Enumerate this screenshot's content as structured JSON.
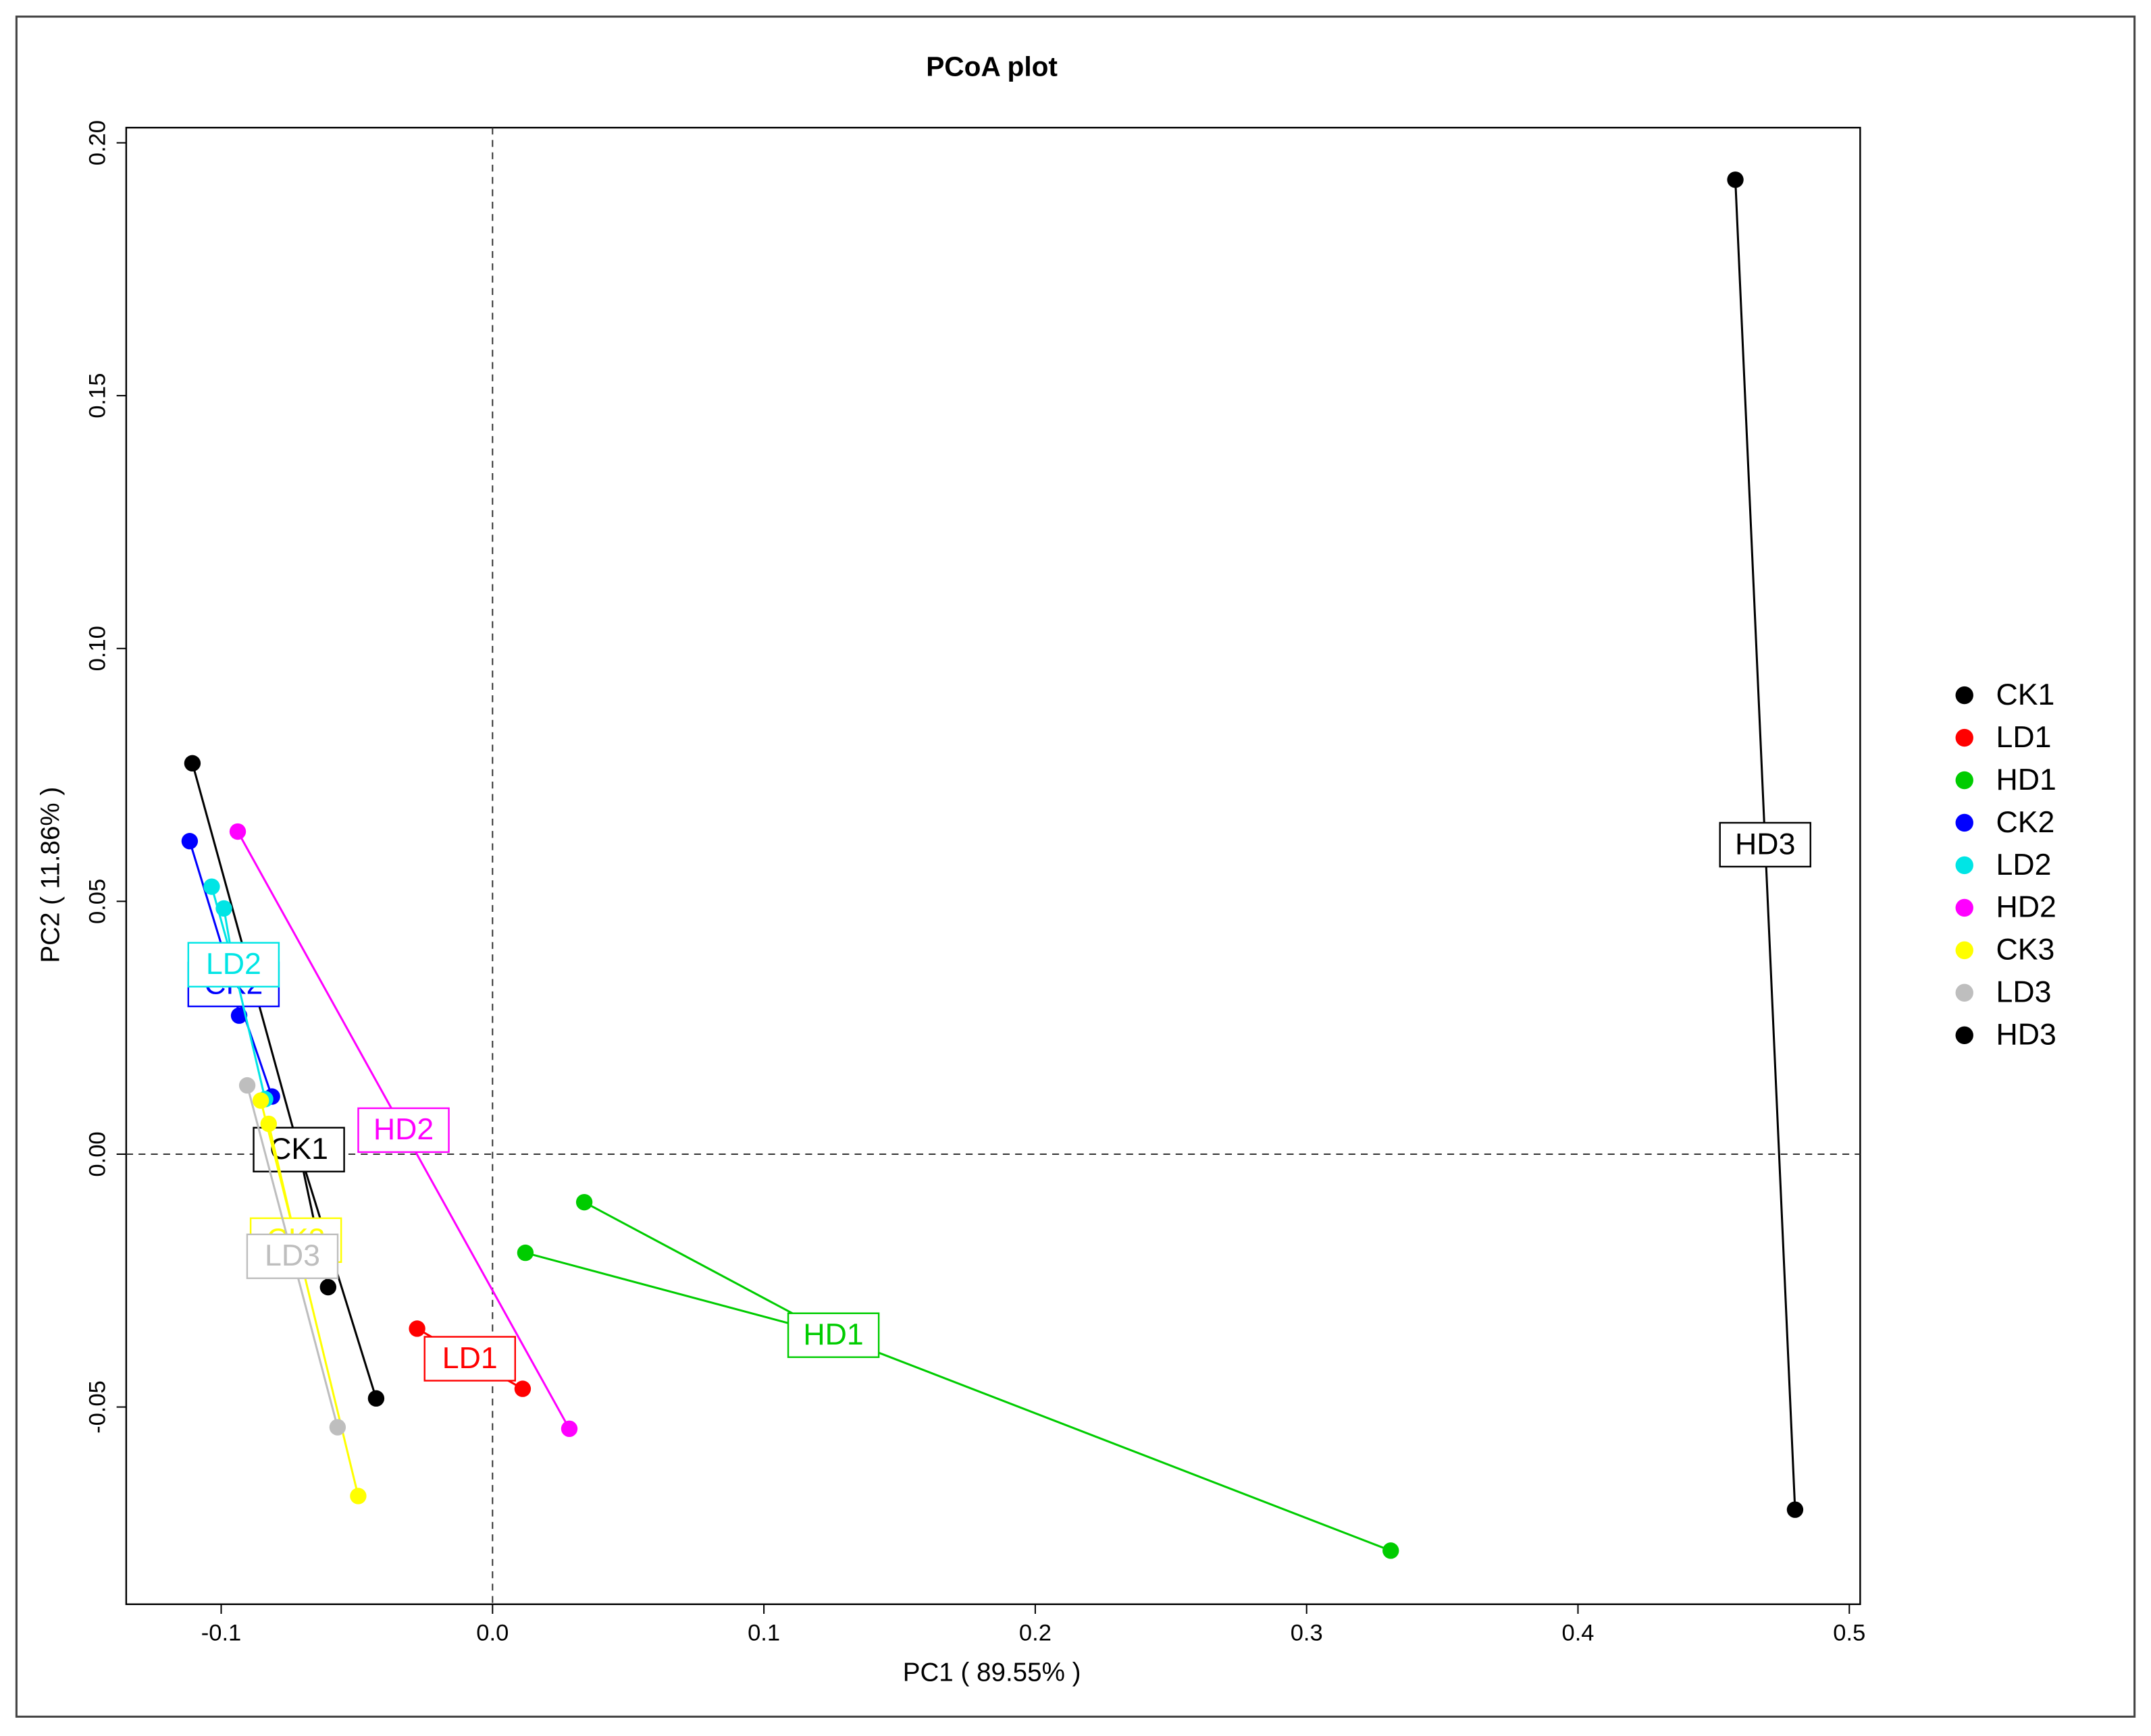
{
  "chart_data": {
    "type": "scatter",
    "title": "PCoA plot",
    "x_label": "PC1 ( 89.55% )",
    "y_label": "PC2 ( 11.86% )",
    "xlim": [
      -0.135,
      0.504
    ],
    "ylim": [
      -0.089,
      0.203
    ],
    "xticks": [
      -0.1,
      {
        "value": 0,
        "label": "0.0"
      },
      0.1,
      0.2,
      0.3,
      0.4,
      0.5
    ],
    "yticks": [
      -0.05,
      {
        "value": 0,
        "label": "0.00"
      },
      0.05,
      {
        "value": 0.1,
        "label": "0.10"
      },
      0.15,
      {
        "value": 0.2,
        "label": "0.20"
      }
    ],
    "legend": "right",
    "series": [
      {
        "name": "CK1",
        "color": "#000000",
        "x": [
          -0.1106,
          -0.0606,
          -0.0429
        ],
        "values": [
          0.0773,
          -0.0263,
          -0.0483
        ]
      },
      {
        "name": "LD1",
        "color": "#ff0000",
        "x": [
          -0.0278,
          0.0111
        ],
        "values": [
          -0.0345,
          -0.0464
        ]
      },
      {
        "name": "HD1",
        "color": "#00cc00",
        "x": [
          0.0338,
          0.0121,
          0.331
        ],
        "values": [
          -0.0095,
          -0.0195,
          -0.0784
        ]
      },
      {
        "name": "CK2",
        "color": "#0000ff",
        "x": [
          -0.1116,
          -0.0934,
          -0.0813
        ],
        "values": [
          0.0619,
          0.0274,
          0.0114
        ]
      },
      {
        "name": "LD2",
        "color": "#00e5e5",
        "x": [
          -0.1035,
          -0.099,
          -0.0838
        ],
        "values": [
          0.0529,
          0.0486,
          0.0109
        ]
      },
      {
        "name": "HD2",
        "color": "#ff00ff",
        "x": [
          -0.0939,
          0.0283
        ],
        "values": [
          0.0638,
          -0.0543
        ]
      },
      {
        "name": "CK3",
        "color": "#ffff00",
        "x": [
          -0.0854,
          -0.0825,
          -0.0495
        ],
        "values": [
          0.0106,
          0.006,
          -0.0676
        ]
      },
      {
        "name": "LD3",
        "color": "#bebebe",
        "x": [
          -0.0904,
          -0.0571
        ],
        "values": [
          0.0136,
          -0.054
        ]
      },
      {
        "name": "HD3",
        "color": "#000000",
        "x": [
          0.458,
          0.48
        ],
        "values": [
          0.1927,
          -0.0703
        ]
      }
    ]
  }
}
